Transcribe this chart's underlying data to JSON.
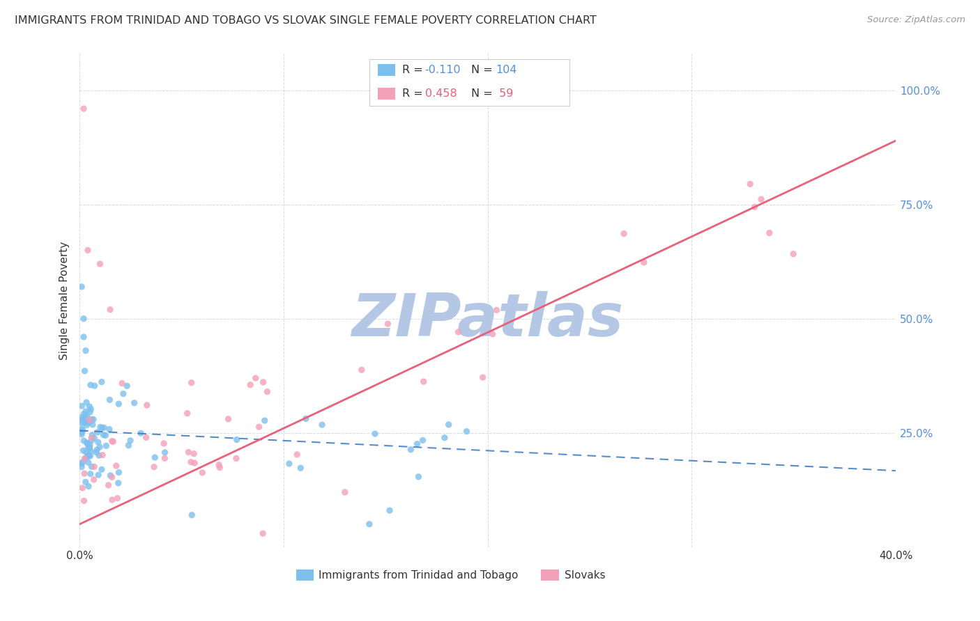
{
  "title": "IMMIGRANTS FROM TRINIDAD AND TOBAGO VS SLOVAK SINGLE FEMALE POVERTY CORRELATION CHART",
  "source": "Source: ZipAtlas.com",
  "ylabel": "Single Female Poverty",
  "legend_blue_R": "-0.110",
  "legend_blue_N": "104",
  "legend_pink_R": "0.458",
  "legend_pink_N": "59",
  "blue_color": "#7DC0EE",
  "pink_color": "#F4A0B8",
  "blue_line_color": "#3878C0",
  "pink_line_color": "#E8607A",
  "blue_line_dash": true,
  "watermark": "ZIPatlas",
  "watermark_color_r": 180,
  "watermark_color_g": 200,
  "watermark_color_b": 230,
  "background_color": "#FFFFFF",
  "grid_color": "#D8D8E8",
  "right_axis_color": "#5590DD",
  "text_color": "#333333",
  "source_color": "#999999"
}
